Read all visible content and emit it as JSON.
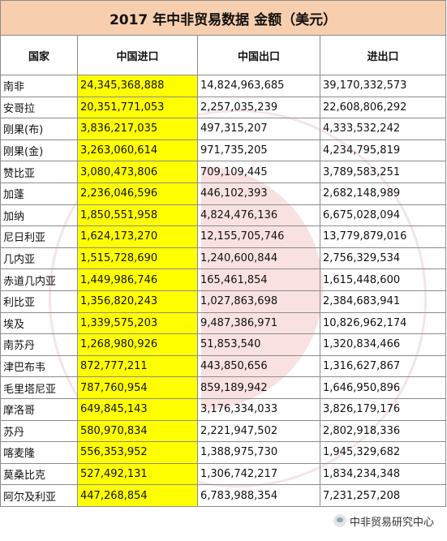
{
  "title": "2017 年中非贸易数据   金额（美元）",
  "headers": [
    "国家",
    "中国进口",
    "中国出口",
    "进出口"
  ],
  "rows": [
    {
      "country": "南非",
      "import": "24,345,368,888",
      "export": "14,824,963,685",
      "total": "39,170,332,573"
    },
    {
      "country": "安哥拉",
      "import": "20,351,771,053",
      "export": "2,257,035,239",
      "total": "22,608,806,292"
    },
    {
      "country": "刚果(布)",
      "import": "3,836,217,035",
      "export": "497,315,207",
      "total": "4,333,532,242"
    },
    {
      "country": "刚果(金)",
      "import": "3,263,060,614",
      "export": "971,735,205",
      "total": "4,234,795,819"
    },
    {
      "country": "赞比亚",
      "import": "3,080,473,806",
      "export": "709,109,445",
      "total": "3,789,583,251"
    },
    {
      "country": "加蓬",
      "import": "2,236,046,596",
      "export": "446,102,393",
      "total": "2,682,148,989"
    },
    {
      "country": "加纳",
      "import": "1,850,551,958",
      "export": "4,824,476,136",
      "total": "6,675,028,094"
    },
    {
      "country": "尼日利亚",
      "import": "1,624,173,270",
      "export": "12,155,705,746",
      "total": "13,779,879,016"
    },
    {
      "country": "几内亚",
      "import": "1,515,728,690",
      "export": "1,240,600,844",
      "total": "2,756,329,534"
    },
    {
      "country": "赤道几内亚",
      "import": "1,449,986,746",
      "export": "165,461,854",
      "total": "1,615,448,600"
    },
    {
      "country": "利比亚",
      "import": "1,356,820,243",
      "export": "1,027,863,698",
      "total": "2,384,683,941"
    },
    {
      "country": "埃及",
      "import": "1,339,575,203",
      "export": "9,487,386,971",
      "total": "10,826,962,174"
    },
    {
      "country": "南苏丹",
      "import": "1,268,980,926",
      "export": "51,853,540",
      "total": "1,320,834,466"
    },
    {
      "country": "津巴布韦",
      "import": "872,777,211",
      "export": "443,850,656",
      "total": "1,316,627,867"
    },
    {
      "country": "毛里塔尼亚",
      "import": "787,760,954",
      "export": "859,189,942",
      "total": "1,646,950,896"
    },
    {
      "country": "摩洛哥",
      "import": "649,845,143",
      "export": "3,176,334,033",
      "total": "3,826,179,176"
    },
    {
      "country": "苏丹",
      "import": "580,970,834",
      "export": "2,221,947,502",
      "total": "2,802,918,336"
    },
    {
      "country": "喀麦隆",
      "import": "556,353,952",
      "export": "1,388,975,730",
      "total": "1,945,329,682"
    },
    {
      "country": "莫桑比克",
      "import": "527,492,131",
      "export": "1,306,742,217",
      "total": "1,834,234,348"
    },
    {
      "country": "阿尔及利亚",
      "import": "447,268,854",
      "export": "6,783,988,354",
      "total": "7,231,257,208"
    }
  ],
  "badge_text": "中非贸易研究中心",
  "colors": {
    "title_bg": "#f7cfae",
    "highlight": "#ffff00",
    "border": "#8c8c8c"
  }
}
